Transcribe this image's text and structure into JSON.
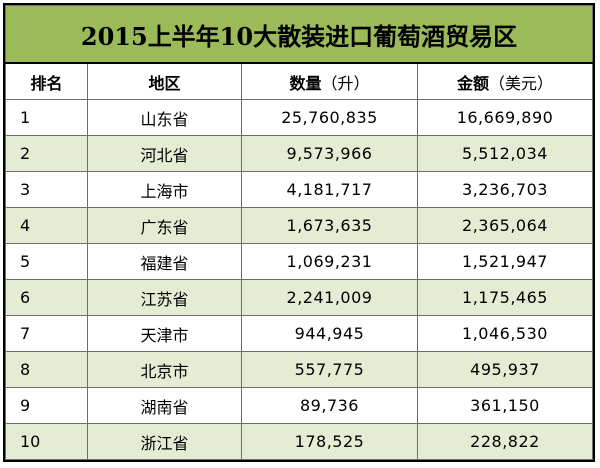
{
  "table": {
    "title": "2015上半年10大散装进口葡萄酒贸易区",
    "headers": {
      "rank": "排名",
      "region": "地区",
      "quantity": "数量",
      "quantity_unit": "（升）",
      "amount": "金额",
      "amount_unit": "（美元）"
    },
    "rows": [
      {
        "rank": "1",
        "region": "山东省",
        "quantity": "25,760,835",
        "amount": "16,669,890"
      },
      {
        "rank": "2",
        "region": "河北省",
        "quantity": "9,573,966",
        "amount": "5,512,034"
      },
      {
        "rank": "3",
        "region": "上海市",
        "quantity": "4,181,717",
        "amount": "3,236,703"
      },
      {
        "rank": "4",
        "region": "广东省",
        "quantity": "1,673,635",
        "amount": "2,365,064"
      },
      {
        "rank": "5",
        "region": "福建省",
        "quantity": "1,069,231",
        "amount": "1,521,947"
      },
      {
        "rank": "6",
        "region": "江苏省",
        "quantity": "2,241,009",
        "amount": "1,175,465"
      },
      {
        "rank": "7",
        "region": "天津市",
        "quantity": "944,945",
        "amount": "1,046,530"
      },
      {
        "rank": "8",
        "region": "北京市",
        "quantity": "557,775",
        "amount": "495,937"
      },
      {
        "rank": "9",
        "region": "湖南省",
        "quantity": "89,736",
        "amount": "361,150"
      },
      {
        "rank": "10",
        "region": "浙江省",
        "quantity": "178,525",
        "amount": "228,822"
      }
    ]
  },
  "colors": {
    "title_background": "#9bbb59",
    "alternate_row_background": "#e4ecd3",
    "border": "#6e6e6e"
  }
}
